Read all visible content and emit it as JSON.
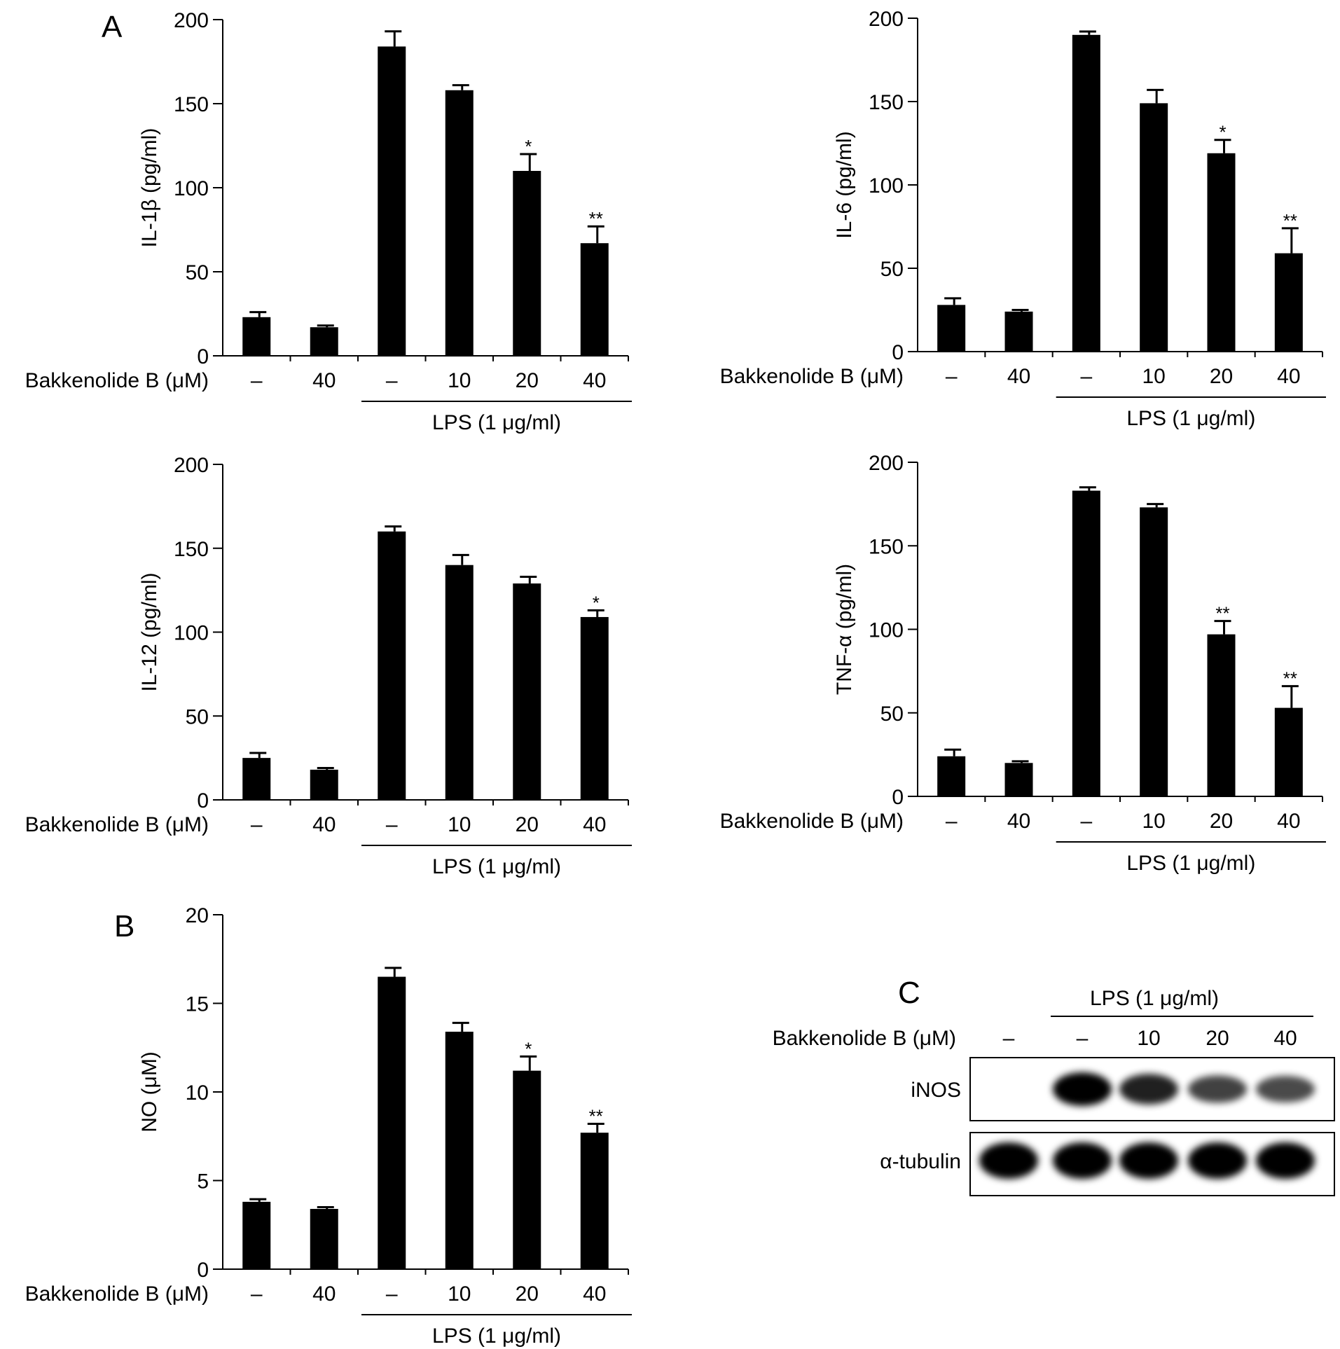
{
  "panel_letters": {
    "a": "A",
    "b": "B",
    "c": "C"
  },
  "chart_data": [
    {
      "id": "il1b",
      "type": "bar",
      "ylabel": "IL-1β (pg/ml)",
      "ylim": [
        0,
        200
      ],
      "yticks": [
        0,
        50,
        100,
        150,
        200
      ],
      "row_label": "Bakkenolide B (μM)",
      "categories": [
        "–",
        "40",
        "–",
        "10",
        "20",
        "40"
      ],
      "group_label": "LPS (1 μg/ml)",
      "values": [
        23,
        17,
        184,
        158,
        110,
        67
      ],
      "errors": [
        3,
        1,
        9,
        3,
        10,
        10
      ],
      "significance": [
        "",
        "",
        "",
        "",
        "*",
        "**"
      ]
    },
    {
      "id": "il6",
      "type": "bar",
      "ylabel": "IL-6 (pg/ml)",
      "ylim": [
        0,
        200
      ],
      "yticks": [
        0,
        50,
        100,
        150,
        200
      ],
      "row_label": "Bakkenolide B (μM)",
      "categories": [
        "–",
        "40",
        "–",
        "10",
        "20",
        "40"
      ],
      "group_label": "LPS (1 μg/ml)",
      "values": [
        28,
        24,
        190,
        149,
        119,
        59
      ],
      "errors": [
        4,
        1,
        2,
        8,
        8,
        15
      ],
      "significance": [
        "",
        "",
        "",
        "",
        "*",
        "**"
      ]
    },
    {
      "id": "il12",
      "type": "bar",
      "ylabel": "IL-12 (pg/ml)",
      "ylim": [
        0,
        200
      ],
      "yticks": [
        0,
        50,
        100,
        150,
        200
      ],
      "row_label": "Bakkenolide B (μM)",
      "categories": [
        "–",
        "40",
        "–",
        "10",
        "20",
        "40"
      ],
      "group_label": "LPS (1 μg/ml)",
      "values": [
        25,
        18,
        160,
        140,
        129,
        109
      ],
      "errors": [
        3,
        1,
        3,
        6,
        4,
        4
      ],
      "significance": [
        "",
        "",
        "",
        "",
        "",
        "*"
      ]
    },
    {
      "id": "tnfa",
      "type": "bar",
      "ylabel": "TNF-α (pg/ml)",
      "ylim": [
        0,
        200
      ],
      "yticks": [
        0,
        50,
        100,
        150,
        200
      ],
      "row_label": "Bakkenolide B (μM)",
      "categories": [
        "–",
        "40",
        "–",
        "10",
        "20",
        "40"
      ],
      "group_label": "LPS (1 μg/ml)",
      "values": [
        24,
        20,
        183,
        173,
        97,
        53
      ],
      "errors": [
        4,
        1,
        2,
        2,
        8,
        13
      ],
      "significance": [
        "",
        "",
        "",
        "",
        "**",
        "**"
      ]
    },
    {
      "id": "no",
      "type": "bar",
      "ylabel": "NO (μM)",
      "ylim": [
        0,
        20
      ],
      "yticks": [
        0,
        5,
        10,
        15,
        20
      ],
      "row_label": "Bakkenolide B (μM)",
      "categories": [
        "–",
        "40",
        "–",
        "10",
        "20",
        "40"
      ],
      "group_label": "LPS (1 μg/ml)",
      "values": [
        3.8,
        3.4,
        16.5,
        13.4,
        11.2,
        7.7
      ],
      "errors": [
        0.15,
        0.1,
        0.5,
        0.5,
        0.8,
        0.5
      ],
      "significance": [
        "",
        "",
        "",
        "",
        "*",
        "**"
      ]
    }
  ],
  "blot": {
    "group_label": "LPS (1 μg/ml)",
    "row_label": "Bakkenolide B (μM)",
    "lanes": [
      "–",
      "–",
      "10",
      "20",
      "40"
    ],
    "bands": [
      {
        "label": "iNOS",
        "intensity": [
          0,
          1.0,
          0.8,
          0.6,
          0.55
        ]
      },
      {
        "label": "α-tubulin",
        "intensity": [
          1,
          1,
          1,
          1,
          1
        ]
      }
    ]
  }
}
